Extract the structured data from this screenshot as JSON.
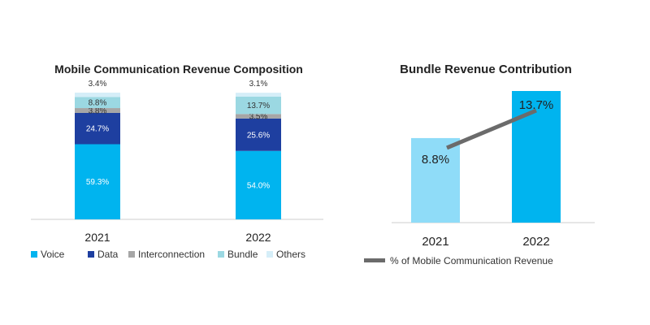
{
  "colors": {
    "voice": "#00b4ef",
    "data": "#1e3fa0",
    "interconnection": "#a6a6a6",
    "bundle": "#9bd8e2",
    "others": "#d5eef8",
    "bundle_2021": "#8fdcf8",
    "bundle_2022": "#00b4ef",
    "line": "#6b6b6b"
  },
  "chart_data": [
    {
      "type": "bar",
      "stacked": true,
      "title": "Mobile Communication Revenue Composition",
      "categories": [
        "2021",
        "2022"
      ],
      "series": [
        {
          "name": "Voice",
          "color_key": "voice",
          "values": [
            59.3,
            54.0
          ],
          "labels": [
            "59.3%",
            "54.0%"
          ]
        },
        {
          "name": "Data",
          "color_key": "data",
          "values": [
            24.7,
            25.6
          ],
          "labels": [
            "24.7%",
            "25.6%"
          ]
        },
        {
          "name": "Interconnection",
          "color_key": "interconnection",
          "values": [
            3.8,
            3.5
          ],
          "labels": [
            "3.8%",
            "3.5%"
          ]
        },
        {
          "name": "Bundle",
          "color_key": "bundle",
          "values": [
            8.8,
            13.7
          ],
          "labels": [
            "8.8%",
            "13.7%"
          ]
        },
        {
          "name": "Others",
          "color_key": "others",
          "values": [
            3.4,
            3.1
          ],
          "labels": [
            "3.4%",
            "3.1%"
          ]
        }
      ],
      "ylim": [
        0,
        100
      ],
      "legend_position": "bottom"
    },
    {
      "type": "bar",
      "title": "Bundle Revenue Contribution",
      "categories": [
        "2021",
        "2022"
      ],
      "values": [
        8.8,
        13.7
      ],
      "value_labels": [
        "8.8%",
        "13.7%"
      ],
      "bar_color_keys": [
        "bundle_2021",
        "bundle_2022"
      ],
      "line_series": {
        "name": "% of Mobile Communication Revenue",
        "values": [
          8.8,
          13.7
        ]
      },
      "ylim": [
        0,
        14
      ],
      "legend_position": "bottom"
    }
  ]
}
